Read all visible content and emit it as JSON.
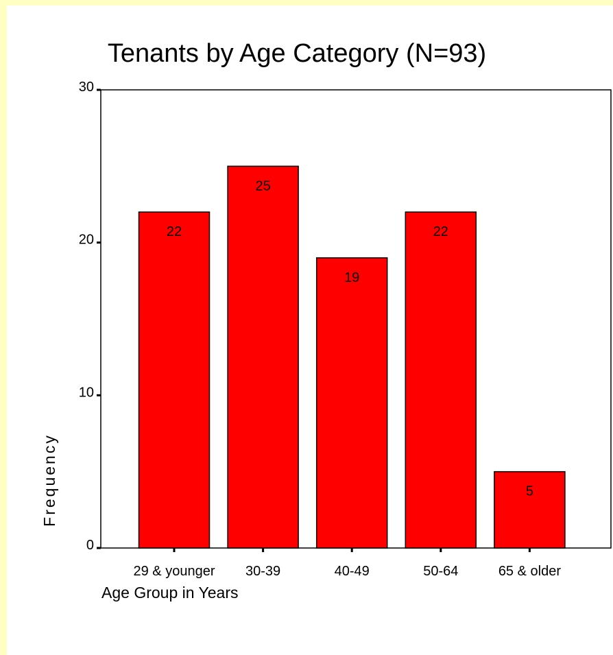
{
  "chart_data": {
    "type": "bar",
    "title": "Tenants by Age Category (N=93)",
    "x_label": "Age Group in Years",
    "y_label": "Frequency",
    "categories": [
      "29 & younger",
      "30-39",
      "40-49",
      "50-64",
      "65 & older"
    ],
    "values": [
      22,
      25,
      19,
      22,
      5
    ],
    "color": "#ff0000",
    "ylim": [
      0,
      30
    ],
    "yticks": [
      0,
      10,
      20,
      30
    ]
  }
}
